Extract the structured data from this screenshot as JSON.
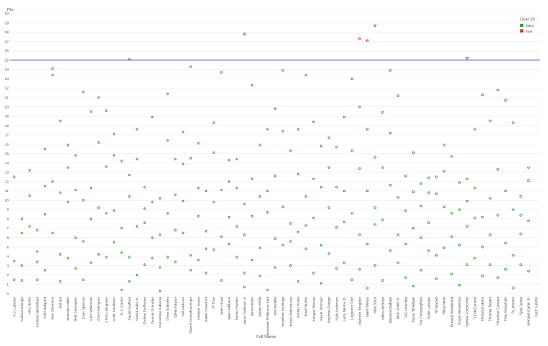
{
  "chart_data": {
    "type": "scatter",
    "title": "",
    "xlabel": "Full Name",
    "ylabel": "Pts",
    "ylim": [
      0,
      30
    ],
    "yticks": [
      0,
      1,
      2,
      3,
      4,
      5,
      6,
      7,
      8,
      9,
      10,
      11,
      12,
      13,
      14,
      15,
      16,
      17,
      18,
      19,
      20,
      21,
      22,
      23,
      24,
      25,
      26,
      27,
      28,
      29,
      30
    ],
    "grid": true,
    "legend_position": "top-right",
    "x_tick_labels": [
      "A.J. Lawson",
      "Adama Sanogo",
      "Alec Burks",
      "Andrew Nembhard",
      "Ariel Hukporti",
      "Ben Simmons",
      "Bol Bol",
      "Brandon Miller",
      "Bub Carrington",
      "Cam Spencer",
      "Cam Whitmore",
      "Chet Holmgren",
      "Chris Livingston",
      "Colin Castleton",
      "D.J. Carton",
      "Daniel Gafford",
      "David Duke Jr.",
      "DeMar DeRozan",
      "Dennis Schroder",
      "Domantas Sabonis",
      "Drew Eubanks",
      "Elfrid Payton",
      "Gill Jackson",
      "Gianni Antetokounmpo",
      "Herbert Jones",
      "Isaiah Crawford",
      "JT Thor",
      "Jalen Hood",
      "Jalen Williams",
      "James Harden",
      "Jaren Jackson Jr",
      "Jared Butler",
      "Jazian Wells",
      "Jeremiah Robinson-Earl",
      "Joel Embiid",
      "Jonathan Kuminga",
      "Jonas Valanciunas",
      "Jordan Poole",
      "Jusuf Nurkic",
      "Keegan Murray",
      "Kevin Johnson",
      "Keyonte George",
      "Kyle Anderson",
      "Larry Nance Jr.",
      "Luguentz Dort",
      "Malcolm Brogdon",
      "Mark Wilson",
      "Max Strus",
      "Miles McBride",
      "Moussa Diabate",
      "Nick Smith Jr.",
      "OG Anunoby",
      "Oscar Tshiebwe",
      "Pat Connaughton",
      "Pelle Larsson",
      "RJ Barrett",
      "Riley Minix",
      "Russell Westbrook",
      "Scoot Henderson",
      "Sidnee Fontecchio",
      "TJ McConnell",
      "Terrance Mann",
      "Thomas Bryant",
      "Thurman Camara",
      "Trey Alexander",
      "Ty Jerome",
      "Tyus Jones",
      "Wendell Carter Jr.",
      "Zach LaVine"
    ],
    "reference_line": {
      "y": 25,
      "color": "#5b5fb0"
    },
    "legend": {
      "title": "Over 25",
      "entries": [
        {
          "label": "false",
          "color": "#3a9a3a"
        },
        {
          "label": "true",
          "color": "#d62e2e"
        }
      ]
    },
    "series": [
      {
        "name": "false",
        "color": "#3a9a3a",
        "points": [
          [
            1,
            3.5
          ],
          [
            1,
            12.5
          ],
          [
            1,
            1.5
          ],
          [
            2,
            8
          ],
          [
            2,
            3
          ],
          [
            2,
            6.5
          ],
          [
            2,
            1.4
          ],
          [
            3,
            7.2
          ],
          [
            3,
            13.2
          ],
          [
            3,
            10.5
          ],
          [
            4,
            3.4
          ],
          [
            4,
            4.5
          ],
          [
            4,
            6.8
          ],
          [
            4,
            1.5
          ],
          [
            5,
            8.5
          ],
          [
            5,
            11.5
          ],
          [
            5,
            15.5
          ],
          [
            5,
            2.5
          ],
          [
            6,
            12
          ],
          [
            6,
            6.5
          ],
          [
            6,
            24.1
          ],
          [
            6,
            23.4
          ],
          [
            7,
            18.5
          ],
          [
            7,
            10.8
          ],
          [
            7,
            4.2
          ],
          [
            7,
            1.3
          ],
          [
            8,
            9.8
          ],
          [
            8,
            13.5
          ],
          [
            8,
            15.9
          ],
          [
            8,
            3.8
          ],
          [
            9,
            14.8
          ],
          [
            9,
            11.1
          ],
          [
            9,
            6
          ],
          [
            9,
            2.7
          ],
          [
            10,
            10
          ],
          [
            10,
            5.6
          ],
          [
            10,
            21.6
          ],
          [
            10,
            1.5
          ],
          [
            11,
            11.3
          ],
          [
            11,
            19.5
          ],
          [
            11,
            8
          ],
          [
            11,
            3.3
          ],
          [
            12,
            16.2
          ],
          [
            12,
            9.2
          ],
          [
            12,
            4.2
          ],
          [
            12,
            21
          ],
          [
            13,
            8.6
          ],
          [
            13,
            13.6
          ],
          [
            13,
            19.6
          ],
          [
            13,
            3.9
          ],
          [
            14,
            17.1
          ],
          [
            14,
            14.8
          ],
          [
            14,
            8.9
          ],
          [
            14,
            5.5
          ],
          [
            15,
            14.2
          ],
          [
            15,
            7
          ],
          [
            15,
            0.4
          ],
          [
            15,
            4.4
          ],
          [
            16,
            10.4
          ],
          [
            16,
            12.7
          ],
          [
            16,
            3.9
          ],
          [
            16,
            1.3
          ],
          [
            17,
            17.6
          ],
          [
            17,
            7.2
          ],
          [
            17,
            2
          ],
          [
            17,
            14.4
          ],
          [
            18,
            11.4
          ],
          [
            18,
            7.6
          ],
          [
            18,
            3.1
          ],
          [
            18,
            9.1
          ],
          [
            19,
            18.9
          ],
          [
            19,
            6
          ],
          [
            19,
            3.8
          ],
          [
            19,
            9.8
          ],
          [
            20,
            10.2
          ],
          [
            20,
            6.3
          ],
          [
            20,
            2.8
          ],
          [
            20,
            0.3
          ],
          [
            21,
            8.6
          ],
          [
            21,
            3.9
          ],
          [
            21,
            16.4
          ],
          [
            21,
            21.4
          ],
          [
            22,
            14.4
          ],
          [
            22,
            6.8
          ],
          [
            22,
            10.6
          ],
          [
            22,
            3.4
          ],
          [
            23,
            17.3
          ],
          [
            23,
            13.9
          ],
          [
            23,
            9.9
          ],
          [
            23,
            6.5
          ],
          [
            24,
            24.3
          ],
          [
            24,
            4.1
          ],
          [
            24,
            2.5
          ],
          [
            24,
            14.5
          ],
          [
            25,
            8.3
          ],
          [
            25,
            16.1
          ],
          [
            25,
            3.6
          ],
          [
            25,
            11.3
          ],
          [
            26,
            11
          ],
          [
            26,
            6.7
          ],
          [
            26,
            2.2
          ],
          [
            26,
            4.8
          ],
          [
            27,
            18.3
          ],
          [
            27,
            15.1
          ],
          [
            27,
            4.7
          ],
          [
            27,
            9.8
          ],
          [
            28,
            11.1
          ],
          [
            28,
            6.1
          ],
          [
            28,
            23.7
          ],
          [
            28,
            1.4
          ],
          [
            29,
            14.3
          ],
          [
            29,
            8.2
          ],
          [
            29,
            5.3
          ],
          [
            29,
            12
          ],
          [
            30,
            11.3
          ],
          [
            30,
            7.2
          ],
          [
            30,
            14.4
          ],
          [
            30,
            3.9
          ],
          [
            31,
            9.6
          ],
          [
            31,
            6.3
          ],
          [
            31,
            2.2
          ],
          [
            31,
            0.7
          ],
          [
            32,
            12.3
          ],
          [
            32,
            8.3
          ],
          [
            32,
            22.3
          ],
          [
            32,
            3.6
          ],
          [
            33,
            15.9
          ],
          [
            33,
            10.4
          ],
          [
            33,
            4.9
          ],
          [
            33,
            1.9
          ],
          [
            34,
            11
          ],
          [
            34,
            17.6
          ],
          [
            34,
            8.7
          ],
          [
            34,
            0.4
          ],
          [
            35,
            19.8
          ],
          [
            35,
            12.6
          ],
          [
            35,
            5.9
          ],
          [
            35,
            2.8
          ],
          [
            36,
            17.4
          ],
          [
            36,
            9.3
          ],
          [
            36,
            23.9
          ],
          [
            36,
            5.2
          ],
          [
            37,
            15.3
          ],
          [
            37,
            7.5
          ],
          [
            37,
            3
          ],
          [
            37,
            5.6
          ],
          [
            38,
            17.6
          ],
          [
            38,
            12.8
          ],
          [
            38,
            6.6
          ],
          [
            38,
            1.3
          ],
          [
            39,
            10.4
          ],
          [
            39,
            7.3
          ],
          [
            39,
            23.4
          ],
          [
            39,
            4.8
          ],
          [
            40,
            12.3
          ],
          [
            40,
            18.4
          ],
          [
            40,
            8.1
          ],
          [
            40,
            2.2
          ],
          [
            41,
            15.8
          ],
          [
            41,
            11.4
          ],
          [
            41,
            5.2
          ],
          [
            41,
            1.1
          ],
          [
            42,
            13.5
          ],
          [
            42,
            9.2
          ],
          [
            42,
            4.3
          ],
          [
            42,
            16.7
          ],
          [
            43,
            15.7
          ],
          [
            43,
            7.1
          ],
          [
            43,
            2.7
          ],
          [
            43,
            11.4
          ],
          [
            44,
            18.9
          ],
          [
            44,
            11
          ],
          [
            44,
            3.3
          ],
          [
            44,
            7.7
          ],
          [
            45,
            23
          ],
          [
            45,
            15.3
          ],
          [
            45,
            8.6
          ],
          [
            45,
            1.5
          ],
          [
            46,
            20
          ],
          [
            46,
            13.4
          ],
          [
            46,
            6.3
          ],
          [
            46,
            2.6
          ],
          [
            47,
            17.6
          ],
          [
            47,
            11
          ],
          [
            47,
            5.3
          ],
          [
            47,
            0.6
          ],
          [
            48,
            14.6
          ],
          [
            48,
            9.2
          ],
          [
            48,
            3
          ],
          [
            48,
            7.4
          ],
          [
            49,
            19.4
          ],
          [
            49,
            13.5
          ],
          [
            49,
            7.9
          ],
          [
            49,
            1.4
          ],
          [
            50,
            17.2
          ],
          [
            50,
            11.6
          ],
          [
            50,
            23.9
          ],
          [
            50,
            4.6
          ],
          [
            51,
            21.2
          ],
          [
            51,
            10.3
          ],
          [
            51,
            6.3
          ],
          [
            51,
            3.3
          ],
          [
            52,
            12.6
          ],
          [
            52,
            8.9
          ],
          [
            52,
            1.7
          ],
          [
            52,
            5.3
          ],
          [
            53,
            15.1
          ],
          [
            53,
            7
          ],
          [
            53,
            0.8
          ],
          [
            53,
            10.9
          ],
          [
            54,
            11.8
          ],
          [
            54,
            6
          ],
          [
            54,
            2.5
          ],
          [
            54,
            9.4
          ],
          [
            55,
            12.4
          ],
          [
            55,
            7.6
          ],
          [
            55,
            4.6
          ],
          [
            55,
            10.8
          ],
          [
            56,
            10.7
          ],
          [
            56,
            4.1
          ],
          [
            56,
            1.6
          ],
          [
            56,
            12.5
          ],
          [
            57,
            15.9
          ],
          [
            57,
            9.3
          ],
          [
            57,
            4.9
          ],
          [
            57,
            13.1
          ],
          [
            58,
            14.7
          ],
          [
            58,
            8.6
          ],
          [
            58,
            2.1
          ],
          [
            58,
            6.1
          ],
          [
            59,
            9
          ],
          [
            59,
            5.2
          ],
          [
            59,
            0.9
          ],
          [
            59,
            11.9
          ],
          [
            60,
            12.3
          ],
          [
            60,
            7.2
          ],
          [
            60,
            3.1
          ],
          [
            60,
            9.9
          ],
          [
            61,
            8.1
          ],
          [
            61,
            3.8
          ],
          [
            61,
            17.6
          ],
          [
            61,
            11.3
          ],
          [
            62,
            21.3
          ],
          [
            62,
            8.2
          ],
          [
            62,
            5
          ],
          [
            62,
            1.9
          ],
          [
            63,
            18.5
          ],
          [
            63,
            10.2
          ],
          [
            63,
            6.3
          ],
          [
            63,
            3.1
          ],
          [
            64,
            21.8
          ],
          [
            64,
            13.3
          ],
          [
            64,
            8.4
          ],
          [
            64,
            1.7
          ],
          [
            65,
            20.7
          ],
          [
            65,
            11
          ],
          [
            65,
            5.4
          ],
          [
            65,
            2.6
          ],
          [
            66,
            18.3
          ],
          [
            66,
            9
          ],
          [
            66,
            4.1
          ],
          [
            66,
            0.6
          ],
          [
            67,
            10.4
          ],
          [
            67,
            6.4
          ],
          [
            67,
            3.1
          ],
          [
            67,
            8.4
          ],
          [
            68,
            13.5
          ],
          [
            68,
            7.8
          ],
          [
            68,
            2.4
          ],
          [
            68,
            12.1
          ]
        ]
      },
      {
        "name": "true",
        "color": "#d62e2e",
        "points": [
          [
            31,
            27.8
          ],
          [
            46,
            27.3
          ],
          [
            47,
            27.1
          ],
          [
            48,
            28.7
          ],
          [
            60,
            25.2
          ],
          [
            16,
            25.1
          ]
        ]
      }
    ]
  }
}
